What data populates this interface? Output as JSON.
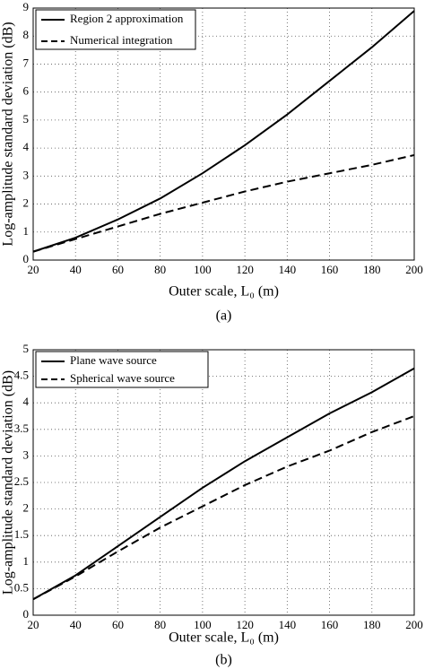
{
  "chart_data": [
    {
      "type": "line",
      "caption": "(a)",
      "xlabel": "Outer scale, L₀ (m)",
      "ylabel": "Log-amplitude standard deviation (dB)",
      "x": [
        20,
        40,
        60,
        80,
        100,
        120,
        140,
        160,
        180,
        200
      ],
      "series": [
        {
          "name": "Region 2 approximation",
          "color": "#000000",
          "dashed": false,
          "values": [
            0.3,
            0.8,
            1.45,
            2.2,
            3.1,
            4.1,
            5.2,
            6.4,
            7.6,
            8.9
          ]
        },
        {
          "name": "Numerical integration",
          "color": "#000000",
          "dashed": true,
          "values": [
            0.3,
            0.75,
            1.2,
            1.65,
            2.05,
            2.45,
            2.8,
            3.1,
            3.4,
            3.75
          ]
        }
      ],
      "xlim": [
        20,
        200
      ],
      "xticks": [
        20,
        40,
        60,
        80,
        100,
        120,
        140,
        160,
        180,
        200
      ],
      "ylim": [
        0,
        9
      ],
      "yticks": [
        0,
        1,
        2,
        3,
        4,
        5,
        6,
        7,
        8,
        9
      ],
      "grid": true,
      "legend": "upper-left"
    },
    {
      "type": "line",
      "caption": "(b)",
      "xlabel": "Outer scale, L₀ (m)",
      "ylabel": "Log-amplitude standard deviation (dB)",
      "x": [
        20,
        40,
        60,
        80,
        100,
        120,
        140,
        160,
        180,
        200
      ],
      "series": [
        {
          "name": "Plane wave source",
          "color": "#000000",
          "dashed": false,
          "values": [
            0.3,
            0.75,
            1.3,
            1.85,
            2.4,
            2.9,
            3.35,
            3.8,
            4.2,
            4.65
          ]
        },
        {
          "name": "Spherical wave source",
          "color": "#000000",
          "dashed": true,
          "values": [
            0.3,
            0.73,
            1.2,
            1.65,
            2.05,
            2.45,
            2.8,
            3.1,
            3.45,
            3.75
          ]
        }
      ],
      "xlim": [
        20,
        200
      ],
      "xticks": [
        20,
        40,
        60,
        80,
        100,
        120,
        140,
        160,
        180,
        200
      ],
      "ylim": [
        0,
        5
      ],
      "yticks": [
        0,
        0.5,
        1,
        1.5,
        2,
        2.5,
        3,
        3.5,
        4,
        4.5,
        5
      ],
      "grid": true,
      "legend": "upper-left"
    }
  ]
}
